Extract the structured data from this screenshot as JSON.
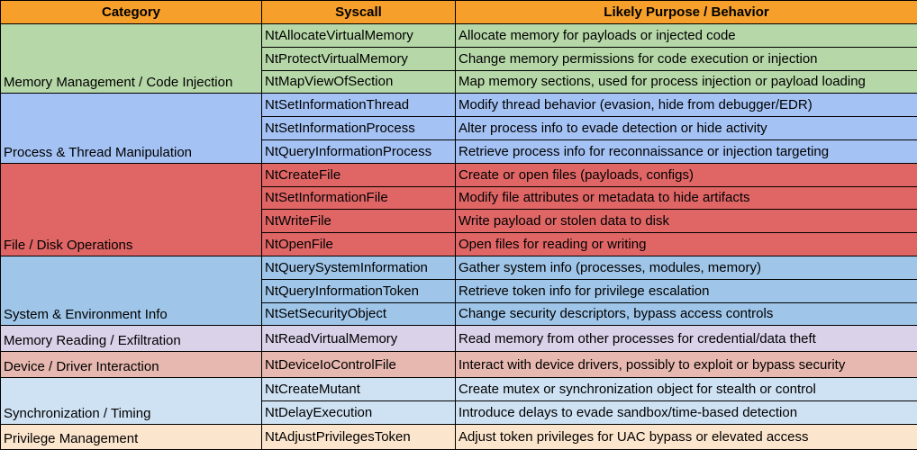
{
  "headers": [
    "Category",
    "Syscall",
    "Likely Purpose / Behavior"
  ],
  "colors": {
    "header": "#f6a02b"
  },
  "groups": [
    {
      "category": "Memory Management / Code Injection",
      "color": "#b6d7a8",
      "rows": [
        {
          "syscall": "NtAllocateVirtualMemory",
          "purpose": "Allocate memory for payloads or injected code"
        },
        {
          "syscall": "NtProtectVirtualMemory",
          "purpose": "Change memory permissions for code execution or injection"
        },
        {
          "syscall": "NtMapViewOfSection",
          "purpose": "Map memory sections, used for process injection or payload loading"
        }
      ]
    },
    {
      "category": "Process & Thread Manipulation",
      "color": "#a4c2f4",
      "rows": [
        {
          "syscall": "NtSetInformationThread",
          "purpose": "Modify thread behavior (evasion, hide from debugger/EDR)"
        },
        {
          "syscall": "NtSetInformationProcess",
          "purpose": "Alter process info to evade detection or hide activity"
        },
        {
          "syscall": "NtQueryInformationProcess",
          "purpose": "Retrieve process info for reconnaissance or injection targeting"
        }
      ]
    },
    {
      "category": "File / Disk Operations",
      "color": "#e06666",
      "rows": [
        {
          "syscall": "NtCreateFile",
          "purpose": "Create or open files (payloads, configs)"
        },
        {
          "syscall": "NtSetInformationFile",
          "purpose": "Modify file attributes or metadata to hide artifacts"
        },
        {
          "syscall": "NtWriteFile",
          "purpose": "Write payload or stolen data to disk"
        },
        {
          "syscall": "NtOpenFile",
          "purpose": "Open files for reading or writing"
        }
      ]
    },
    {
      "category": "System & Environment Info",
      "color": "#9fc5e8",
      "rows": [
        {
          "syscall": "NtQuerySystemInformation",
          "purpose": "Gather system info (processes, modules, memory)"
        },
        {
          "syscall": "NtQueryInformationToken",
          "purpose": "Retrieve token info for privilege escalation"
        },
        {
          "syscall": "NtSetSecurityObject",
          "purpose": "Change security descriptors, bypass access controls"
        }
      ]
    },
    {
      "category": "Memory Reading / Exfiltration",
      "color": "#d9d2e9",
      "rows": [
        {
          "syscall": "NtReadVirtualMemory",
          "purpose": "Read memory from other processes for credential/data theft"
        }
      ]
    },
    {
      "category": "Device / Driver Interaction",
      "color": "#e6b8af",
      "rows": [
        {
          "syscall": "NtDeviceIoControlFile",
          "purpose": "Interact with device drivers, possibly to exploit or bypass security"
        }
      ]
    },
    {
      "category": "Synchronization / Timing",
      "color": "#cfe2f3",
      "rows": [
        {
          "syscall": "NtCreateMutant",
          "purpose": "Create mutex or synchronization object for stealth or control"
        },
        {
          "syscall": "NtDelayExecution",
          "purpose": "Introduce delays to evade sandbox/time-based detection"
        }
      ]
    },
    {
      "category": "Privilege Management",
      "color": "#fce5cd",
      "rows": [
        {
          "syscall": "NtAdjustPrivilegesToken",
          "purpose": "Adjust token privileges for UAC bypass or elevated access"
        }
      ]
    }
  ]
}
